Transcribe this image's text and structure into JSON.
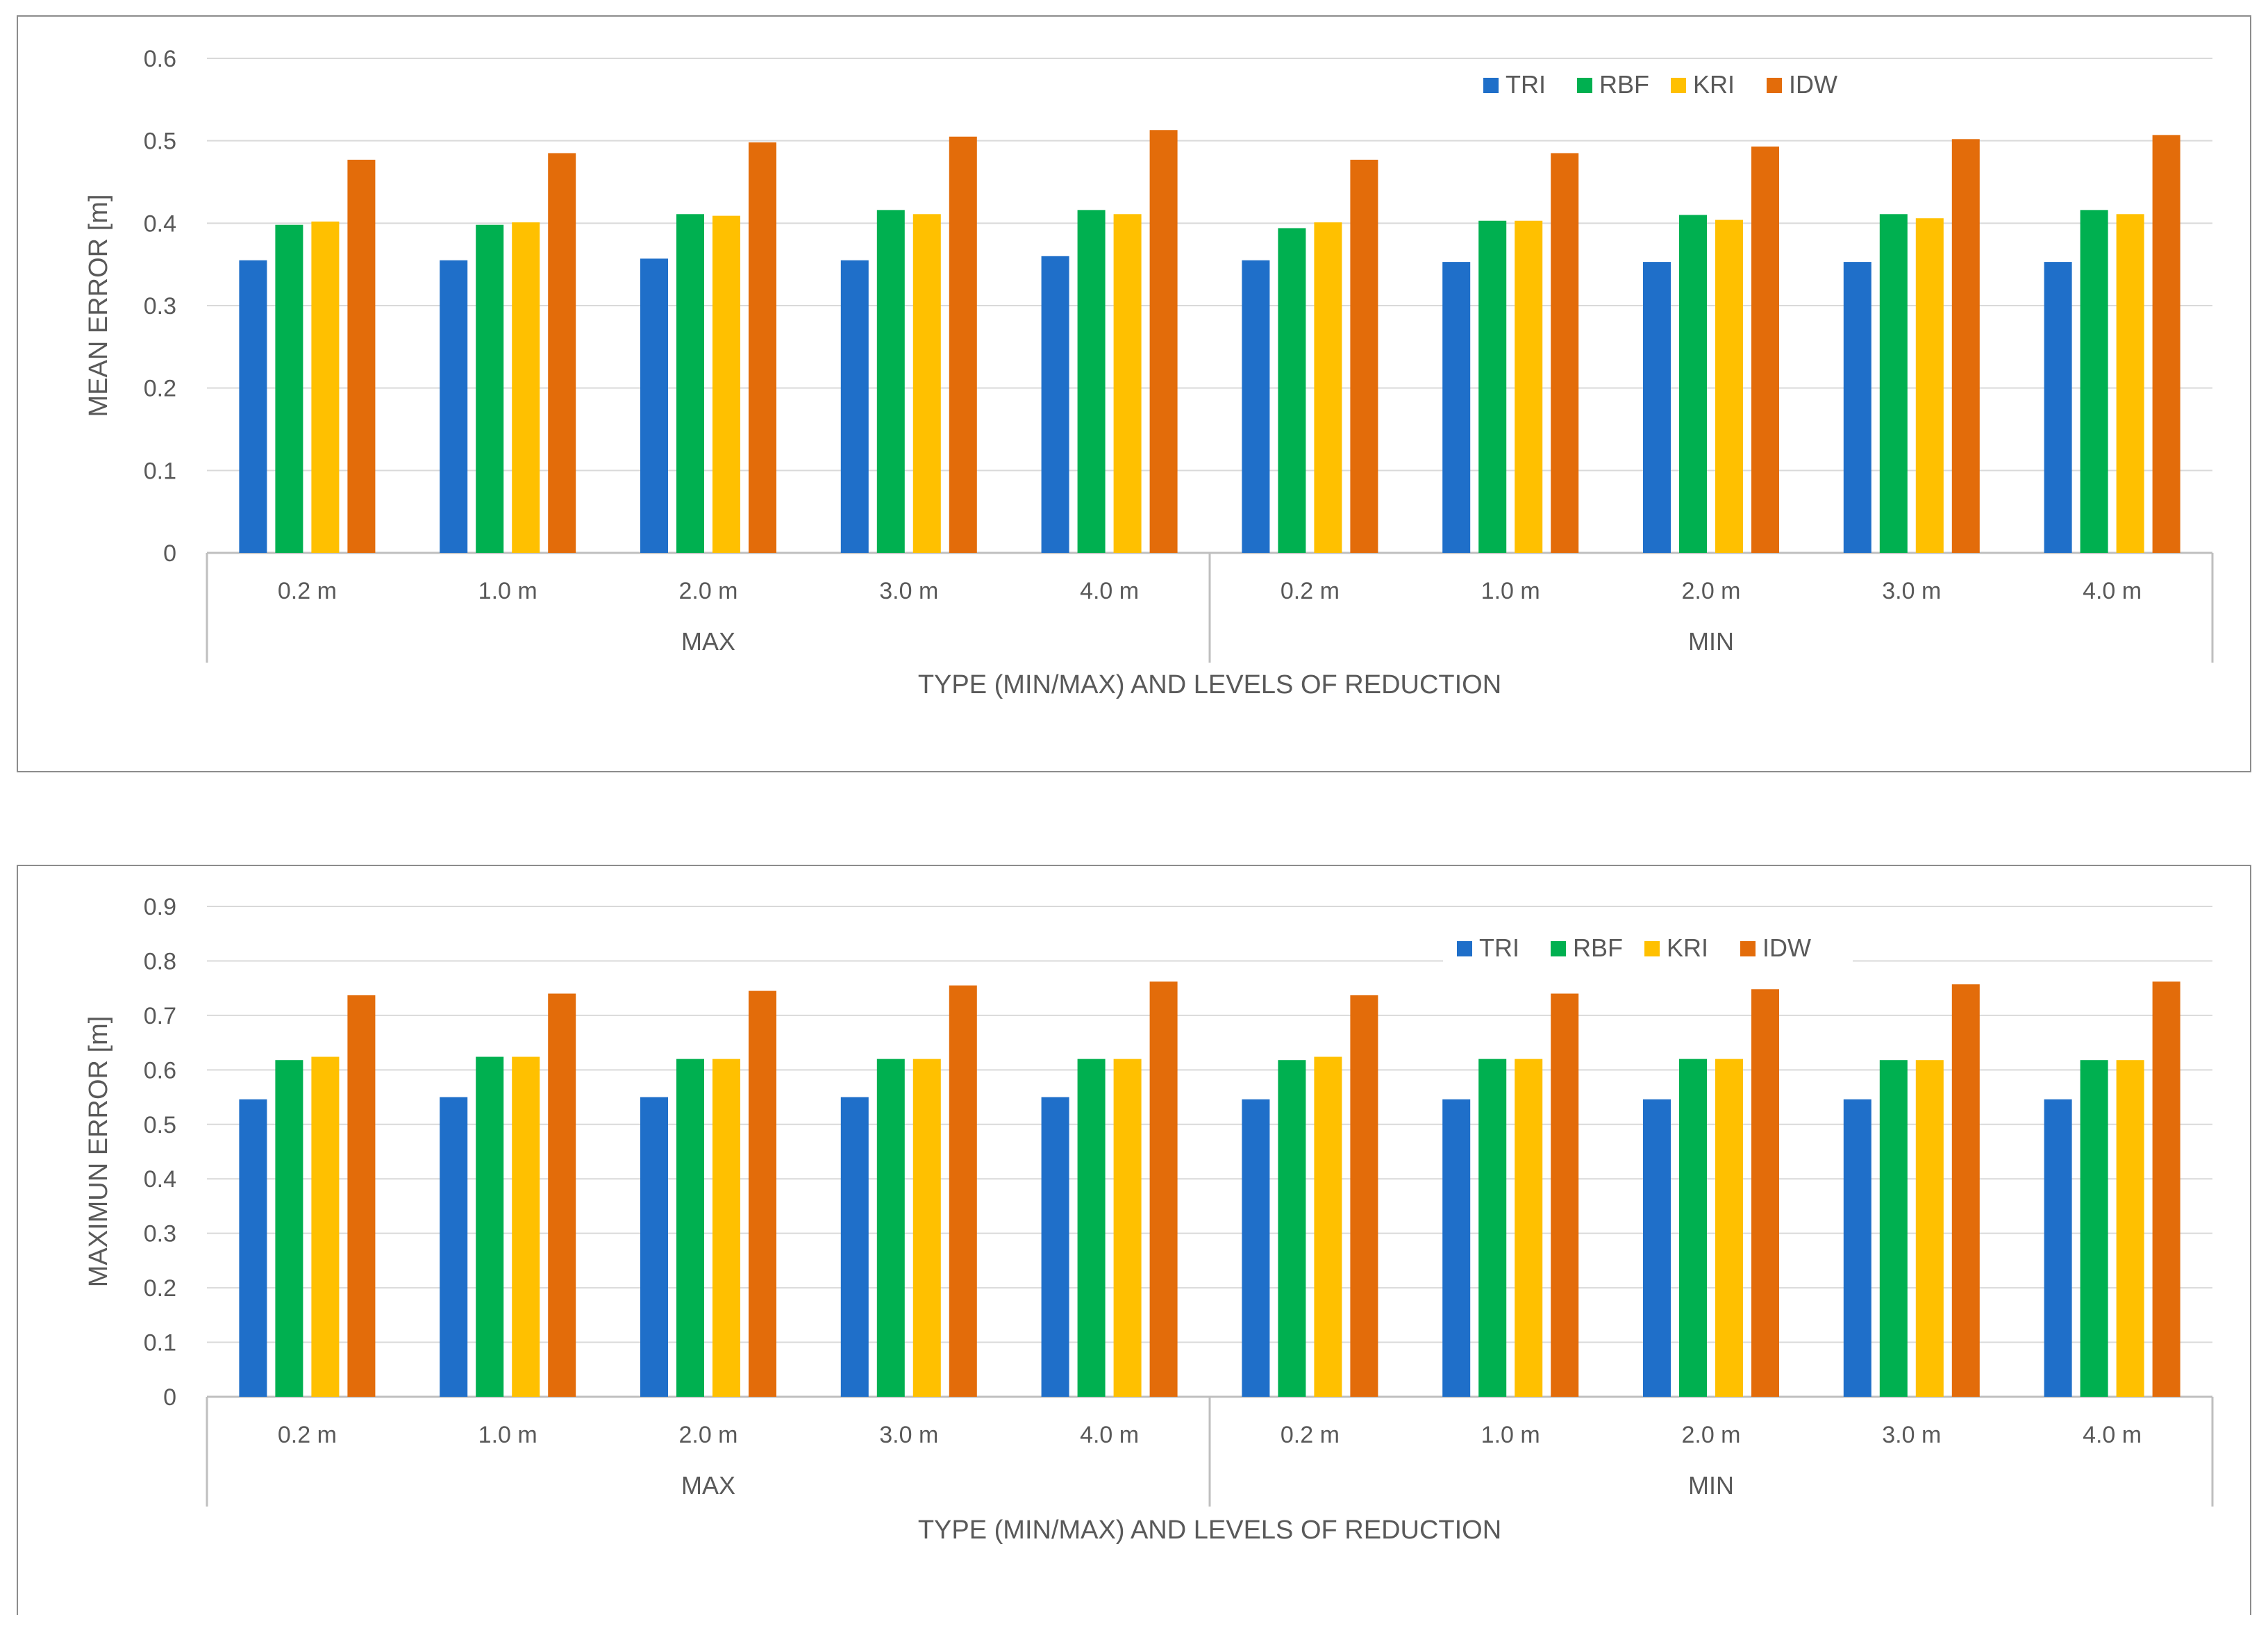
{
  "chart_data": [
    {
      "type": "bar",
      "title": "",
      "ylabel": "MEAN ERROR [m]",
      "xlabel": "TYPE  (MIN/MAX) AND LEVELS OF REDUCTION",
      "ylim": [
        0,
        0.6
      ],
      "yticks": [
        "0",
        "0.1",
        "0.2",
        "0.3",
        "0.4",
        "0.5",
        "0.6"
      ],
      "groups": [
        "MAX",
        "MIN"
      ],
      "categories": [
        "0.2 m",
        "1.0 m",
        "2.0 m",
        "3.0 m",
        "4.0 m",
        "0.2 m",
        "1.0 m",
        "2.0 m",
        "3.0 m",
        "4.0 m"
      ],
      "legend_position": "top-right",
      "series": [
        {
          "name": "TRI",
          "color": "#1f6fc9",
          "values": [
            0.355,
            0.355,
            0.357,
            0.355,
            0.36,
            0.355,
            0.353,
            0.353,
            0.353,
            0.353
          ]
        },
        {
          "name": "RBF",
          "color": "#00b050",
          "values": [
            0.398,
            0.398,
            0.411,
            0.416,
            0.416,
            0.394,
            0.403,
            0.41,
            0.411,
            0.416
          ]
        },
        {
          "name": "KRI",
          "color": "#ffc000",
          "values": [
            0.402,
            0.401,
            0.409,
            0.411,
            0.411,
            0.401,
            0.403,
            0.404,
            0.406,
            0.411
          ]
        },
        {
          "name": "IDW",
          "color": "#e36c0a",
          "values": [
            0.477,
            0.485,
            0.498,
            0.505,
            0.513,
            0.477,
            0.485,
            0.493,
            0.502,
            0.507
          ]
        }
      ]
    },
    {
      "type": "bar",
      "title": "",
      "ylabel": "MAXIMUN ERROR [m]",
      "xlabel": "TYPE  (MIN/MAX) AND LEVELS OF REDUCTION",
      "ylim": [
        0,
        0.9
      ],
      "yticks": [
        "0",
        "0.1",
        "0.2",
        "0.3",
        "0.4",
        "0.5",
        "0.6",
        "0.7",
        "0.8",
        "0.9"
      ],
      "groups": [
        "MAX",
        "MIN"
      ],
      "categories": [
        "0.2 m",
        "1.0 m",
        "2.0 m",
        "3.0 m",
        "4.0 m",
        "0.2 m",
        "1.0 m",
        "2.0 m",
        "3.0 m",
        "4.0 m"
      ],
      "legend_position": "top-right",
      "series": [
        {
          "name": "TRI",
          "color": "#1f6fc9",
          "values": [
            0.546,
            0.55,
            0.55,
            0.55,
            0.55,
            0.546,
            0.546,
            0.546,
            0.546,
            0.546
          ]
        },
        {
          "name": "RBF",
          "color": "#00b050",
          "values": [
            0.618,
            0.624,
            0.62,
            0.62,
            0.62,
            0.618,
            0.62,
            0.62,
            0.618,
            0.618
          ]
        },
        {
          "name": "KRI",
          "color": "#ffc000",
          "values": [
            0.624,
            0.624,
            0.62,
            0.62,
            0.62,
            0.624,
            0.62,
            0.62,
            0.618,
            0.618
          ]
        },
        {
          "name": "IDW",
          "color": "#e36c0a",
          "values": [
            0.737,
            0.74,
            0.745,
            0.755,
            0.762,
            0.737,
            0.74,
            0.748,
            0.757,
            0.762
          ]
        }
      ]
    }
  ]
}
